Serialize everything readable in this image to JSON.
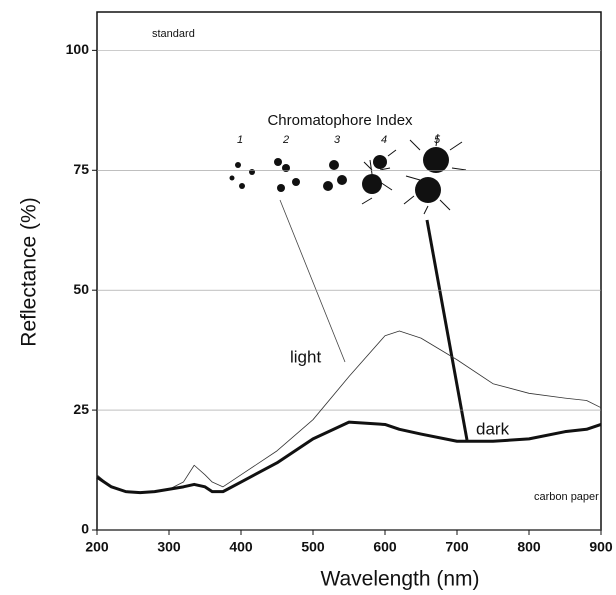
{
  "chart_data": {
    "type": "line",
    "xlabel": "Wavelength (nm)",
    "ylabel": "Reflectance (%)",
    "x": [
      200,
      220,
      240,
      260,
      280,
      300,
      320,
      335,
      350,
      360,
      375,
      400,
      450,
      500,
      550,
      600,
      620,
      650,
      700,
      750,
      800,
      850,
      880,
      900
    ],
    "series": [
      {
        "name": "light",
        "color": "#333333",
        "width": 0.8,
        "values": [
          11.5,
          9,
          8,
          7.8,
          8,
          8.5,
          10,
          13.5,
          11.5,
          10,
          9,
          11.5,
          16.5,
          23,
          32,
          40.5,
          41.5,
          40,
          35.5,
          30.5,
          28.5,
          27.5,
          27,
          25.5
        ]
      },
      {
        "name": "dark",
        "color": "#111111",
        "width": 3,
        "values": [
          11,
          9,
          8,
          7.8,
          8,
          8.5,
          9,
          9.5,
          9,
          8,
          8,
          10,
          14,
          19,
          22.5,
          22,
          21,
          20,
          18.5,
          18.5,
          19,
          20.5,
          21,
          22
        ]
      }
    ],
    "xlim": [
      200,
      900
    ],
    "xticks": [
      200,
      300,
      400,
      500,
      600,
      700,
      800,
      900
    ],
    "ylim": [
      0,
      108
    ],
    "yticks": [
      0,
      25,
      50,
      75,
      100
    ],
    "grid": true,
    "annotations": {
      "standard": "standard",
      "carbon_paper": "carbon paper",
      "index_title": "Chromatophore Index",
      "index_labels": [
        "1",
        "2",
        "3",
        "4",
        "5"
      ]
    }
  }
}
